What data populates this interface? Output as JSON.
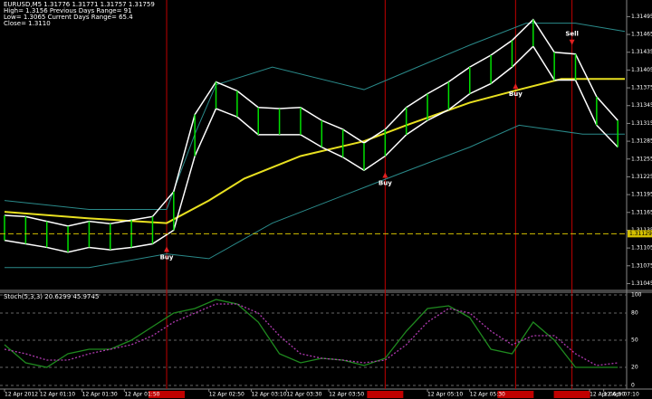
{
  "chart_data": {
    "type": "trading",
    "header": [
      "EURUSD,M5  1.31776 1.31771 1.31757 1.31759",
      "High= 1.3156    Previous Days Range= 91",
      "Low= 1.3065    Current Days Range= 65.4",
      "Close= 1.3110"
    ],
    "xlim": [
      0,
      88
    ],
    "ylim": [
      1.31035,
      1.3152
    ],
    "yticks": [
      1.31495,
      1.31465,
      1.31435,
      1.31405,
      1.31375,
      1.31345,
      1.31315,
      1.31285,
      1.31255,
      1.31225,
      1.31195,
      1.31165,
      1.31135,
      1.31105,
      1.31075,
      1.31045
    ],
    "xticks": [
      {
        "value": 0,
        "label": "12 Apr 2012"
      },
      {
        "value": 5,
        "label": "12 Apr 01:10"
      },
      {
        "value": 11,
        "label": "12 Apr 01:30"
      },
      {
        "value": 17,
        "label": "12 Apr 01:50"
      },
      {
        "value": 29,
        "label": "12 Apr 02:50"
      },
      {
        "value": 35,
        "label": "12 Apr 03:10"
      },
      {
        "value": 40,
        "label": "12 Apr 03:30"
      },
      {
        "value": 46,
        "label": "12 Apr 03:50"
      },
      {
        "value": 60,
        "label": "12 Apr 05:10"
      },
      {
        "value": 66,
        "label": "12 Apr 05:30"
      },
      {
        "value": 83,
        "label": "12 Apr 06:50"
      },
      {
        "value": 85,
        "label": "12 Apr 07:10"
      }
    ],
    "current_price": 1.31129,
    "bars": {
      "x": [
        0,
        3,
        6,
        9,
        12,
        15,
        18,
        21,
        24,
        27,
        30,
        33,
        36,
        39,
        42,
        45,
        48,
        51,
        54,
        57,
        60,
        63,
        66,
        69,
        72,
        75,
        78,
        81,
        84,
        87
      ],
      "high": [
        1.3116,
        1.31158,
        1.3115,
        1.31142,
        1.3115,
        1.31146,
        1.31152,
        1.31158,
        1.312,
        1.3133,
        1.31385,
        1.3137,
        1.31342,
        1.3134,
        1.31342,
        1.3132,
        1.31305,
        1.31282,
        1.31305,
        1.31342,
        1.31365,
        1.31385,
        1.3141,
        1.3143,
        1.31455,
        1.3149,
        1.31435,
        1.31432,
        1.3136,
        1.3132
      ],
      "low": [
        1.31118,
        1.31112,
        1.31106,
        1.31098,
        1.31106,
        1.31102,
        1.31106,
        1.31112,
        1.31135,
        1.3126,
        1.3134,
        1.31326,
        1.31296,
        1.31296,
        1.31296,
        1.31275,
        1.31258,
        1.31236,
        1.3126,
        1.31296,
        1.3132,
        1.31338,
        1.31365,
        1.31382,
        1.3141,
        1.31445,
        1.31388,
        1.31388,
        1.31312,
        1.31275
      ],
      "color": "#00e000",
      "envelope_color": "#ffffff"
    },
    "series": [
      {
        "color": "#e8e020",
        "x": [
          0,
          12,
          23,
          29,
          34,
          42,
          51,
          57,
          66,
          73,
          79,
          88
        ],
        "values": [
          1.31166,
          1.31155,
          1.31147,
          1.31185,
          1.31222,
          1.3126,
          1.31285,
          1.31312,
          1.3135,
          1.31372,
          1.3139,
          1.3139
        ]
      },
      {
        "color": "#2a8a8a",
        "x": [
          0,
          12,
          23,
          27,
          30,
          38,
          51,
          57,
          66,
          74,
          81,
          88
        ],
        "values": [
          1.31185,
          1.3117,
          1.3117,
          1.31297,
          1.3138,
          1.3141,
          1.31372,
          1.31402,
          1.31447,
          1.31484,
          1.31484,
          1.3147
        ]
      },
      {
        "color": "#2a8a8a",
        "x": [
          0,
          12,
          23,
          29,
          38,
          51,
          56,
          66,
          73,
          82,
          88
        ],
        "values": [
          1.31072,
          1.31072,
          1.31095,
          1.31087,
          1.31147,
          1.31207,
          1.3123,
          1.31275,
          1.31312,
          1.31297,
          1.31297
        ]
      }
    ],
    "signals": [
      {
        "x": 23,
        "label": "Buy"
      },
      {
        "x": 54,
        "label": "Buy"
      },
      {
        "x": 72.5,
        "label": "Buy"
      },
      {
        "x": 80.5,
        "label": "Sell"
      }
    ],
    "stoch": {
      "title": "Stoch(5,3,3) 20.6299 45.9745",
      "ylim": [
        0,
        100
      ],
      "yticks": [
        100,
        80,
        50,
        20,
        0
      ],
      "main": {
        "color": "#1f8a1f",
        "values": [
          45,
          25,
          20,
          35,
          40,
          40,
          50,
          65,
          80,
          85,
          95,
          90,
          70,
          35,
          25,
          30,
          28,
          22,
          30,
          60,
          85,
          88,
          75,
          40,
          35,
          70,
          50,
          20,
          20,
          20
        ]
      },
      "signal": {
        "color": "#b03ab0",
        "values": [
          40,
          35,
          28,
          28,
          35,
          40,
          45,
          55,
          70,
          80,
          90,
          90,
          80,
          55,
          35,
          30,
          28,
          25,
          28,
          45,
          70,
          85,
          80,
          60,
          45,
          55,
          55,
          35,
          22,
          25
        ]
      }
    }
  }
}
